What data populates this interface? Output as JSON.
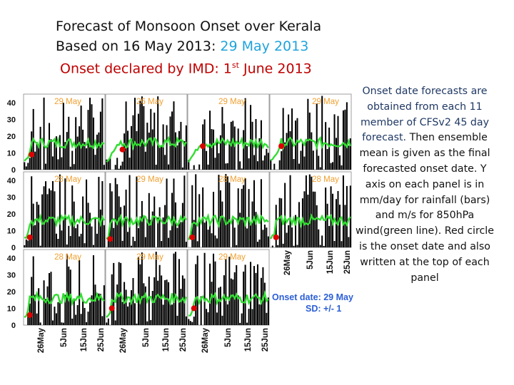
{
  "header": {
    "line1": "Forecast of Monsoon Onset  over Kerala",
    "line2_prefix": "Based on 16 May 2013:  ",
    "line2_date": "29 May 2013",
    "line3_prefix": "Onset declared by IMD: 1",
    "line3_sup": "st",
    "line3_suffix": " June 2013"
  },
  "caption": {
    "part1": "Onset date forecasts are obtained from each 11 member of CFSv2 45 day forecast.",
    "part2": " Then ensemble mean is given as the final forecasted onset date. Y axis on each panel is in mm/day for rainfall (bars) and m/s for 850hPa wind(green line). Red circle is the onset date and also written at the top of each panel"
  },
  "colors": {
    "bars": "#000000",
    "wind_line": "#33dd33",
    "onset_marker": "#dd0000",
    "panel_label": "#f0a030",
    "legend_text": "#2b5ed6"
  },
  "chart_data": {
    "type": "bar",
    "title": "Forecast of Monsoon Onset over Kerala",
    "ylabel": "mm/day (rainfall bars); m/s (850hPa wind, green line)",
    "yticks": [
      0,
      10,
      20,
      30,
      40
    ],
    "ylim": [
      0,
      45
    ],
    "x_ticks": [
      "26May",
      "5Jun",
      "15Jun",
      "25Jun"
    ],
    "members": [
      {
        "label": "29 May",
        "onset_day": 4,
        "onset_value": 9
      },
      {
        "label": "26 May",
        "onset_day": 9,
        "onset_value": 12
      },
      {
        "label": "29 May",
        "onset_day": 8,
        "onset_value": 14
      },
      {
        "label": "29 May",
        "onset_day": 6,
        "onset_value": 14
      },
      {
        "label": "28 May",
        "onset_day": 3,
        "onset_value": 6
      },
      {
        "label": "29 May",
        "onset_day": 2,
        "onset_value": 5
      },
      {
        "label": "28 May",
        "onset_day": 2,
        "onset_value": 6
      },
      {
        "label": "28 May",
        "onset_day": 3,
        "onset_value": 6
      },
      {
        "label": "28 May",
        "onset_day": 3,
        "onset_value": 6
      },
      {
        "label": "29 May",
        "onset_day": 3,
        "onset_value": 10
      },
      {
        "label": "29 May",
        "onset_day": 3,
        "onset_value": 10
      }
    ],
    "legend": {
      "onset_date_label": "Onset date: 29 May",
      "sd_label": "SD: +/- 1"
    }
  }
}
